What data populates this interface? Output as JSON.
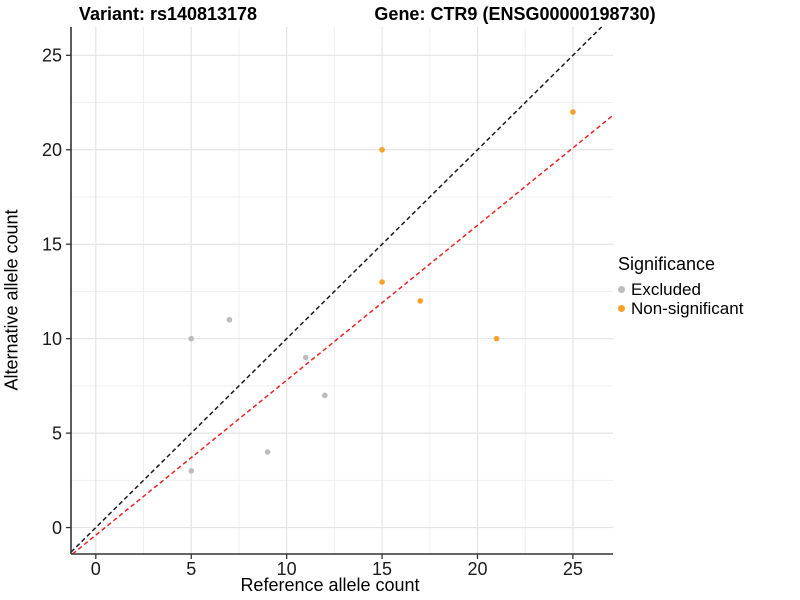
{
  "titles": {
    "variant": "Variant: rs140813178",
    "gene": "Gene: CTR9 (ENSG00000198730)"
  },
  "chart_data": {
    "type": "scatter",
    "title": "Variant: rs140813178   Gene: CTR9 (ENSG00000198730)",
    "xlabel": "Reference allele count",
    "ylabel": "Alternative allele count",
    "xlim": [
      -1.3,
      27.1
    ],
    "ylim": [
      -1.4,
      26.5
    ],
    "x_ticks": [
      0,
      5,
      10,
      15,
      20,
      25
    ],
    "y_ticks": [
      0,
      5,
      10,
      15,
      20,
      25
    ],
    "x_minor_ticks": [
      2.5,
      7.5,
      12.5,
      17.5,
      22.5
    ],
    "y_minor_ticks": [
      2.5,
      7.5,
      12.5,
      17.5,
      22.5
    ],
    "grid": true,
    "legend_position": "right",
    "series": [
      {
        "name": "Excluded",
        "color": "#BCBCBC",
        "points": [
          [
            5,
            3
          ],
          [
            5,
            10
          ],
          [
            7,
            11
          ],
          [
            9,
            4
          ],
          [
            11,
            9
          ],
          [
            12,
            7
          ]
        ]
      },
      {
        "name": "Non-significant",
        "color": "#F7A128",
        "points": [
          [
            15,
            13
          ],
          [
            15,
            20
          ],
          [
            17,
            12
          ],
          [
            21,
            10
          ],
          [
            25,
            22
          ]
        ]
      }
    ],
    "lines": [
      {
        "name": "identity-line",
        "slope": 1,
        "intercept": 0,
        "color": "#1A1A1A",
        "style": "dashed"
      },
      {
        "name": "regression-line",
        "slope": 0.82,
        "intercept": -0.4,
        "color": "#EE2222",
        "style": "dashed"
      }
    ]
  },
  "legend": {
    "title": "Significance",
    "items": [
      {
        "label": "Excluded",
        "color": "#BCBCBC"
      },
      {
        "label": "Non-significant",
        "color": "#F7A128"
      }
    ]
  },
  "style_colors": {
    "major_grid": "#E4E4E4",
    "minor_grid": "#EFEFEF",
    "axis": "#333333",
    "tick_label": "#1A1A1A"
  }
}
